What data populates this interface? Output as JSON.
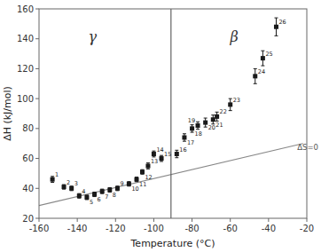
{
  "chart_data": {
    "type": "scatter",
    "xlabel": "Temperature (°C)",
    "ylabel": "ΔH (kJ/mol)",
    "xlim": [
      -160,
      -20
    ],
    "ylim": [
      20,
      160
    ],
    "xticks": [
      -160,
      -140,
      -120,
      -100,
      -80,
      -60,
      -40,
      -20
    ],
    "yticks": [
      20,
      40,
      60,
      80,
      100,
      120,
      140,
      160
    ],
    "grid": false,
    "series": [
      {
        "color": "#1a1a1a",
        "marker": "square",
        "x": [
          -153,
          -147,
          -143,
          -139,
          -135,
          -131,
          -127,
          -123,
          -119,
          -113,
          -109,
          -106,
          -103,
          -100,
          -96,
          -88,
          -84,
          -80,
          -77,
          -73,
          -69,
          -67,
          -60,
          -47,
          -43,
          -36
        ],
        "values": [
          46,
          41,
          40,
          35,
          34,
          36,
          38,
          39,
          40,
          43,
          46,
          51,
          55,
          63,
          60,
          63,
          74,
          80,
          82,
          84,
          86,
          88,
          96,
          115,
          127,
          148
        ],
        "errors": [
          2.0,
          1.5,
          1.5,
          1.5,
          1.5,
          1.5,
          1.5,
          1.5,
          1.5,
          1.5,
          1.5,
          1.5,
          2.0,
          2.0,
          2.0,
          2.5,
          2.5,
          2.5,
          2.5,
          3.0,
          3.0,
          3.0,
          4.0,
          5.0,
          5.0,
          6.0
        ],
        "point_labels": [
          1,
          2,
          3,
          4,
          5,
          6,
          7,
          8,
          9,
          10,
          11,
          12,
          13,
          14,
          15,
          16,
          17,
          18,
          19,
          20,
          21,
          22,
          23,
          24,
          25,
          26
        ]
      }
    ],
    "reference_lines": [
      {
        "x": [
          -160,
          -22
        ],
        "values": [
          28.5,
          70
        ],
        "color": "#888888",
        "label": "ΔS=0",
        "label_x": -25,
        "label_y": 67
      }
    ],
    "vlines": [
      {
        "x": -91,
        "color": "#555555"
      }
    ],
    "annotations": [
      {
        "text": "γ",
        "x": -132,
        "y": 138
      },
      {
        "text": "β",
        "x": -58,
        "y": 138
      }
    ]
  }
}
